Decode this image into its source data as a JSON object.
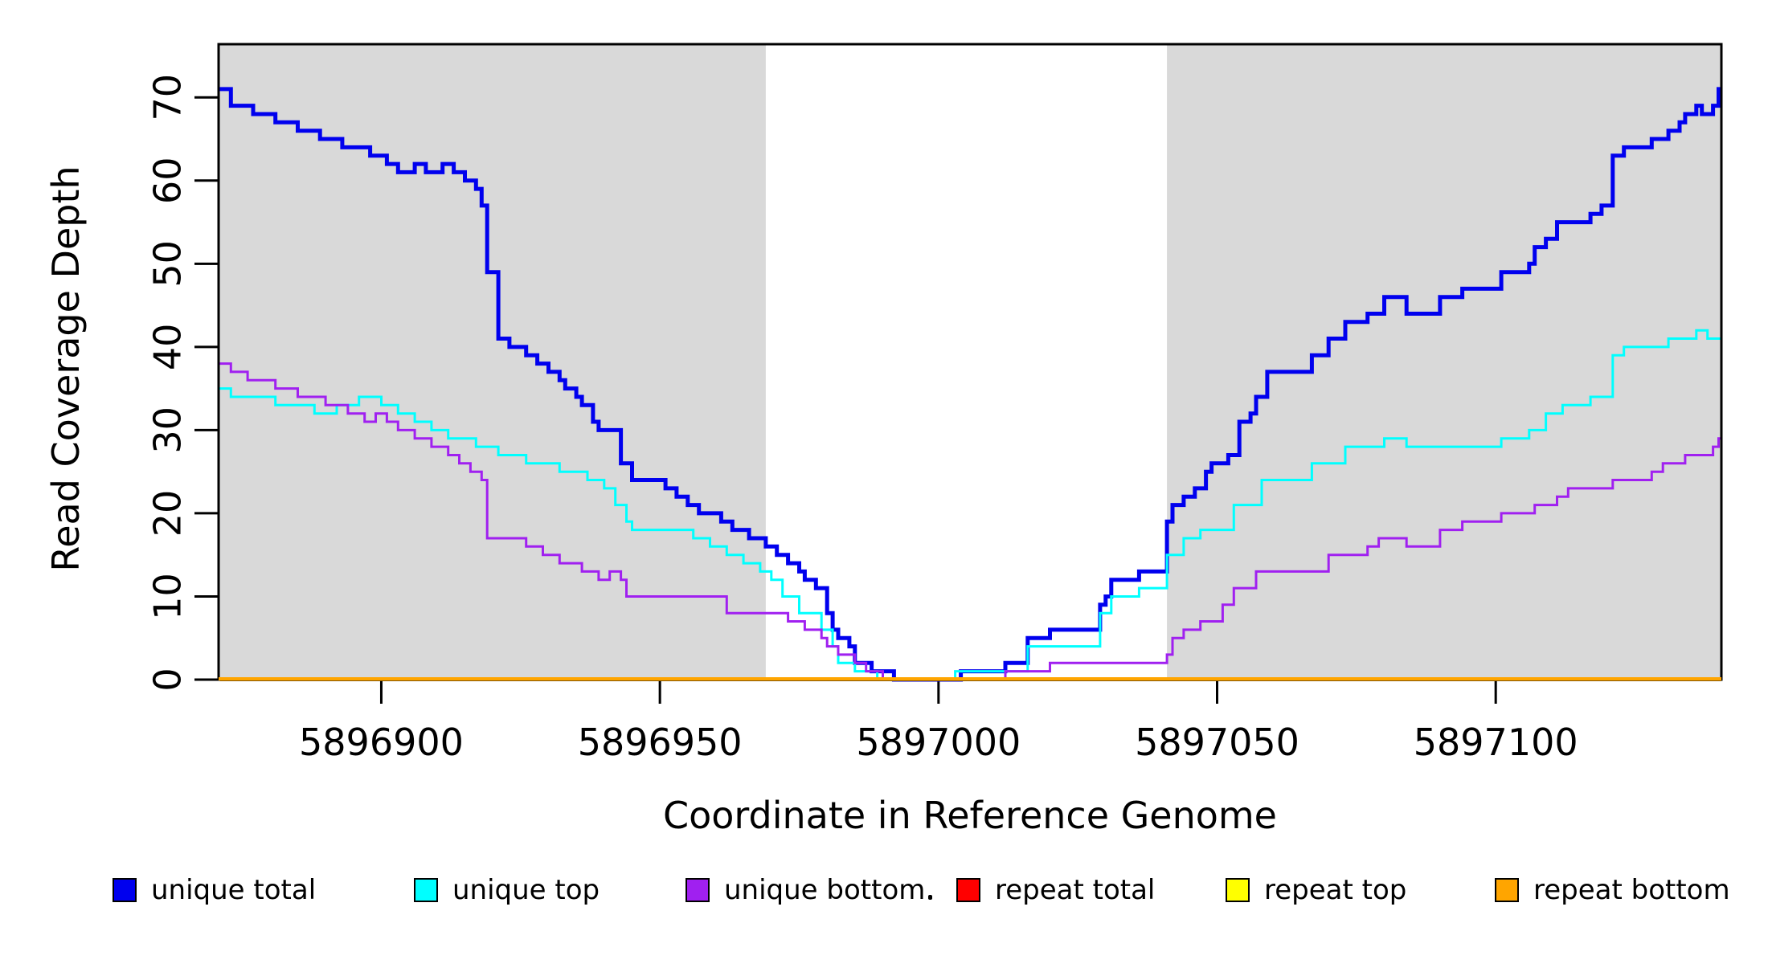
{
  "figure": {
    "xlabel": "Coordinate in Reference Genome",
    "ylabel": "Read Coverage Depth"
  },
  "chart_data": {
    "type": "line",
    "subtype": "step-after-coverage",
    "title": "",
    "xlabel": "Coordinate in Reference Genome",
    "ylabel": "Read Coverage Depth",
    "xlim": [
      5896870.8,
      5897140.5
    ],
    "ylim": [
      0,
      76.4
    ],
    "x_ticks": [
      5896900,
      5896950,
      5897000,
      5897050,
      5897100
    ],
    "y_ticks": [
      0,
      10,
      20,
      30,
      40,
      50,
      60,
      70
    ],
    "grid": false,
    "legend_position": "bottom",
    "background_color": "#ffffff",
    "shade_color": "#D9D9D9",
    "shaded_regions": [
      [
        5896870.8,
        5896969
      ],
      [
        5897041,
        5897140.5
      ]
    ],
    "legend": [
      {
        "label": "unique total",
        "color": "#0000EE"
      },
      {
        "label": "unique top",
        "color": "#00FFFF"
      },
      {
        "label": "unique bottom",
        "color": "#A020F0"
      },
      {
        "label": "repeat total",
        "color": "#FF0000"
      },
      {
        "label": "repeat top",
        "color": "#FFFF00"
      },
      {
        "label": "repeat bottom",
        "color": "#FFA500"
      }
    ],
    "series": [
      {
        "name": "unique total",
        "color": "#0000EE",
        "width": 5,
        "points": [
          [
            5896871,
            71
          ],
          [
            5896873,
            69
          ],
          [
            5896877,
            68
          ],
          [
            5896881,
            67
          ],
          [
            5896885,
            66
          ],
          [
            5896889,
            65
          ],
          [
            5896893,
            64
          ],
          [
            5896898,
            63
          ],
          [
            5896901,
            62
          ],
          [
            5896903,
            61
          ],
          [
            5896906,
            62
          ],
          [
            5896908,
            61
          ],
          [
            5896911,
            62
          ],
          [
            5896913,
            61
          ],
          [
            5896915,
            60
          ],
          [
            5896917,
            59
          ],
          [
            5896918,
            57
          ],
          [
            5896919,
            49
          ],
          [
            5896921,
            41
          ],
          [
            5896923,
            40
          ],
          [
            5896926,
            39
          ],
          [
            5896928,
            38
          ],
          [
            5896930,
            37
          ],
          [
            5896932,
            36
          ],
          [
            5896933,
            35
          ],
          [
            5896935,
            34
          ],
          [
            5896936,
            33
          ],
          [
            5896938,
            31
          ],
          [
            5896939,
            30
          ],
          [
            5896943,
            26
          ],
          [
            5896945,
            24
          ],
          [
            5896951,
            23
          ],
          [
            5896953,
            22
          ],
          [
            5896955,
            21
          ],
          [
            5896957,
            20
          ],
          [
            5896961,
            19
          ],
          [
            5896963,
            18
          ],
          [
            5896966,
            17
          ],
          [
            5896969,
            16
          ],
          [
            5896971,
            15
          ],
          [
            5896973,
            14
          ],
          [
            5896975,
            13
          ],
          [
            5896976,
            12
          ],
          [
            5896978,
            11
          ],
          [
            5896980,
            8
          ],
          [
            5896981,
            6
          ],
          [
            5896982,
            5
          ],
          [
            5896984,
            4
          ],
          [
            5896985,
            2
          ],
          [
            5896988,
            1
          ],
          [
            5896992,
            0
          ],
          [
            5897004,
            1
          ],
          [
            5897012,
            2
          ],
          [
            5897016,
            5
          ],
          [
            5897020,
            6
          ],
          [
            5897029,
            9
          ],
          [
            5897030,
            10
          ],
          [
            5897031,
            12
          ],
          [
            5897036,
            13
          ],
          [
            5897041,
            19
          ],
          [
            5897042,
            21
          ],
          [
            5897044,
            22
          ],
          [
            5897046,
            23
          ],
          [
            5897048,
            25
          ],
          [
            5897049,
            26
          ],
          [
            5897052,
            27
          ],
          [
            5897054,
            31
          ],
          [
            5897056,
            32
          ],
          [
            5897057,
            34
          ],
          [
            5897059,
            37
          ],
          [
            5897067,
            39
          ],
          [
            5897070,
            41
          ],
          [
            5897073,
            43
          ],
          [
            5897077,
            44
          ],
          [
            5897080,
            46
          ],
          [
            5897084,
            44
          ],
          [
            5897090,
            46
          ],
          [
            5897094,
            47
          ],
          [
            5897101,
            49
          ],
          [
            5897106,
            50
          ],
          [
            5897107,
            52
          ],
          [
            5897109,
            53
          ],
          [
            5897111,
            55
          ],
          [
            5897117,
            56
          ],
          [
            5897119,
            57
          ],
          [
            5897121,
            63
          ],
          [
            5897123,
            64
          ],
          [
            5897128,
            65
          ],
          [
            5897131,
            66
          ],
          [
            5897133,
            67
          ],
          [
            5897134,
            68
          ],
          [
            5897136,
            69
          ],
          [
            5897137,
            68
          ],
          [
            5897139,
            69
          ],
          [
            5897140,
            71
          ]
        ]
      },
      {
        "name": "unique top",
        "color": "#00FFFF",
        "width": 3,
        "points": [
          [
            5896871,
            35
          ],
          [
            5896873,
            34
          ],
          [
            5896881,
            33
          ],
          [
            5896888,
            32
          ],
          [
            5896892,
            33
          ],
          [
            5896896,
            34
          ],
          [
            5896900,
            33
          ],
          [
            5896903,
            32
          ],
          [
            5896906,
            31
          ],
          [
            5896909,
            30
          ],
          [
            5896912,
            29
          ],
          [
            5896917,
            28
          ],
          [
            5896921,
            27
          ],
          [
            5896926,
            26
          ],
          [
            5896932,
            25
          ],
          [
            5896937,
            24
          ],
          [
            5896940,
            23
          ],
          [
            5896942,
            21
          ],
          [
            5896944,
            19
          ],
          [
            5896945,
            18
          ],
          [
            5896956,
            17
          ],
          [
            5896959,
            16
          ],
          [
            5896962,
            15
          ],
          [
            5896965,
            14
          ],
          [
            5896968,
            13
          ],
          [
            5896970,
            12
          ],
          [
            5896972,
            10
          ],
          [
            5896975,
            8
          ],
          [
            5896979,
            6
          ],
          [
            5896981,
            4
          ],
          [
            5896982,
            2
          ],
          [
            5896985,
            1
          ],
          [
            5896989,
            0
          ],
          [
            5897003,
            1
          ],
          [
            5897016,
            4
          ],
          [
            5897029,
            8
          ],
          [
            5897031,
            10
          ],
          [
            5897036,
            11
          ],
          [
            5897041,
            15
          ],
          [
            5897044,
            17
          ],
          [
            5897047,
            18
          ],
          [
            5897053,
            21
          ],
          [
            5897058,
            24
          ],
          [
            5897067,
            26
          ],
          [
            5897073,
            28
          ],
          [
            5897080,
            29
          ],
          [
            5897084,
            28
          ],
          [
            5897101,
            29
          ],
          [
            5897106,
            30
          ],
          [
            5897109,
            32
          ],
          [
            5897112,
            33
          ],
          [
            5897117,
            34
          ],
          [
            5897121,
            39
          ],
          [
            5897123,
            40
          ],
          [
            5897131,
            41
          ],
          [
            5897136,
            42
          ],
          [
            5897138,
            41
          ]
        ]
      },
      {
        "name": "unique bottom",
        "color": "#A020F0",
        "width": 3,
        "points": [
          [
            5896871,
            38
          ],
          [
            5896873,
            37
          ],
          [
            5896876,
            36
          ],
          [
            5896881,
            35
          ],
          [
            5896885,
            34
          ],
          [
            5896890,
            33
          ],
          [
            5896894,
            32
          ],
          [
            5896897,
            31
          ],
          [
            5896899,
            32
          ],
          [
            5896901,
            31
          ],
          [
            5896903,
            30
          ],
          [
            5896906,
            29
          ],
          [
            5896909,
            28
          ],
          [
            5896912,
            27
          ],
          [
            5896914,
            26
          ],
          [
            5896916,
            25
          ],
          [
            5896918,
            24
          ],
          [
            5896919,
            17
          ],
          [
            5896926,
            16
          ],
          [
            5896929,
            15
          ],
          [
            5896932,
            14
          ],
          [
            5896936,
            13
          ],
          [
            5896939,
            12
          ],
          [
            5896941,
            13
          ],
          [
            5896943,
            12
          ],
          [
            5896944,
            10
          ],
          [
            5896962,
            8
          ],
          [
            5896973,
            7
          ],
          [
            5896976,
            6
          ],
          [
            5896979,
            5
          ],
          [
            5896980,
            4
          ],
          [
            5896982,
            3
          ],
          [
            5896985,
            2
          ],
          [
            5896987,
            1
          ],
          [
            5896990,
            0
          ],
          [
            5897012,
            1
          ],
          [
            5897020,
            2
          ],
          [
            5897041,
            3
          ],
          [
            5897042,
            5
          ],
          [
            5897044,
            6
          ],
          [
            5897047,
            7
          ],
          [
            5897051,
            9
          ],
          [
            5897053,
            11
          ],
          [
            5897057,
            13
          ],
          [
            5897070,
            15
          ],
          [
            5897077,
            16
          ],
          [
            5897079,
            17
          ],
          [
            5897084,
            16
          ],
          [
            5897090,
            18
          ],
          [
            5897094,
            19
          ],
          [
            5897101,
            20
          ],
          [
            5897107,
            21
          ],
          [
            5897111,
            22
          ],
          [
            5897113,
            23
          ],
          [
            5897121,
            24
          ],
          [
            5897128,
            25
          ],
          [
            5897130,
            26
          ],
          [
            5897134,
            27
          ],
          [
            5897139,
            28
          ],
          [
            5897140,
            29
          ]
        ]
      },
      {
        "name": "repeat total",
        "color": "#FF0000",
        "width": 3,
        "points": [
          [
            5896871,
            0
          ],
          [
            5897140,
            0
          ]
        ]
      },
      {
        "name": "repeat top",
        "color": "#FFFF00",
        "width": 3,
        "points": [
          [
            5896871,
            0
          ],
          [
            5897140,
            0
          ]
        ]
      },
      {
        "name": "repeat bottom",
        "color": "#FFA500",
        "width": 4,
        "points": [
          [
            5896871,
            0
          ],
          [
            5897140,
            0
          ]
        ]
      }
    ]
  }
}
